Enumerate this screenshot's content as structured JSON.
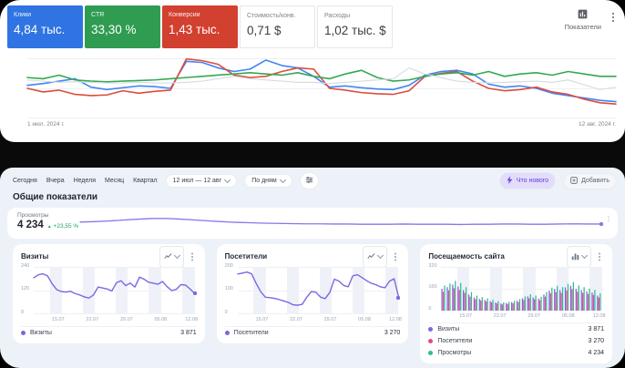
{
  "ads": {
    "scorecards": [
      {
        "label": "Клики",
        "value": "4,84 тыс.",
        "bg": "#2f74e2",
        "fg": "#ffffff",
        "light": false
      },
      {
        "label": "CTR",
        "value": "33,30 %",
        "bg": "#2f9c52",
        "fg": "#ffffff",
        "light": false
      },
      {
        "label": "Конверсии",
        "value": "1,43 тыс.",
        "bg": "#d2402f",
        "fg": "#ffffff",
        "light": false
      },
      {
        "label": "Стоимость/конв.",
        "value": "0,71 $",
        "bg": "#ffffff",
        "fg": "#3c4043",
        "light": true
      },
      {
        "label": "Расходы",
        "value": "1,02 тыс. $",
        "bg": "#ffffff",
        "fg": "#3c4043",
        "light": true
      }
    ],
    "metrics_label": "Показатели"
  },
  "metrica": {
    "toolbar": {
      "periods": [
        "Сегодня",
        "Вчера",
        "Неделя",
        "Месяц",
        "Квартал"
      ],
      "date_range": "12 июл — 12 авг",
      "grouping": "По дням",
      "whats_new": "Что нового",
      "add": "Добавить"
    },
    "section_title": "Общие показатели",
    "overview": {
      "label": "Просмотры",
      "value": "4 234",
      "delta_arrow": "▲",
      "delta": "+23,55 %"
    }
  },
  "chart_data": [
    {
      "id": "ads-performance",
      "type": "line",
      "ymax": 100,
      "grid": true,
      "x_start_label": "1 июл. 2024 г.",
      "x_end_label": "12 авг. 2024 г.",
      "series": [
        {
          "name": "Клики",
          "color": "#4285f4",
          "width": 1.6,
          "values": [
            55,
            58,
            62,
            66,
            52,
            48,
            51,
            54,
            53,
            50,
            95,
            93,
            84,
            78,
            82,
            97,
            88,
            84,
            70,
            52,
            54,
            51,
            49,
            48,
            55,
            72,
            78,
            80,
            74,
            57,
            52,
            54,
            50,
            42,
            38,
            34,
            30,
            28
          ]
        },
        {
          "name": "Конверсии",
          "color": "#dd4b3e",
          "width": 1.6,
          "values": [
            50,
            44,
            47,
            40,
            38,
            39,
            46,
            42,
            45,
            47,
            99,
            96,
            90,
            72,
            68,
            70,
            78,
            84,
            82,
            50,
            47,
            43,
            41,
            40,
            46,
            70,
            75,
            78,
            62,
            50,
            46,
            48,
            52,
            44,
            40,
            32,
            26,
            24
          ]
        },
        {
          "name": "CTR",
          "color": "#34a853",
          "width": 1.6,
          "values": [
            68,
            66,
            72,
            64,
            62,
            61,
            62,
            63,
            64,
            66,
            68,
            70,
            72,
            74,
            76,
            74,
            72,
            76,
            70,
            66,
            74,
            80,
            68,
            62,
            64,
            70,
            74,
            76,
            72,
            78,
            70,
            74,
            76,
            72,
            78,
            74,
            70,
            70
          ]
        },
        {
          "name": "Стоимость/конв.",
          "color": "#d9dce0",
          "width": 1.2,
          "values": [
            64,
            62,
            60,
            61,
            60,
            59,
            59,
            60,
            59,
            59,
            60,
            62,
            66,
            70,
            66,
            64,
            62,
            60,
            60,
            58,
            60,
            62,
            64,
            66,
            84,
            74,
            68,
            62,
            60,
            59,
            60,
            61,
            62,
            60,
            64,
            56,
            48,
            52
          ]
        }
      ]
    },
    {
      "id": "views-sparkline",
      "type": "line",
      "title": "Просмотры",
      "ymax": 100,
      "grid": false,
      "series": [
        {
          "name": "Просмотры",
          "color": "#8a76e8",
          "width": 1.3,
          "end_dot": true,
          "values": [
            55,
            57,
            60,
            64,
            68,
            71,
            72,
            69,
            65,
            61,
            57,
            54,
            52,
            50,
            49,
            48,
            47,
            47,
            46,
            46,
            45,
            45,
            45,
            46,
            45,
            45,
            45,
            44,
            45,
            45,
            46,
            46,
            45,
            45,
            46,
            47,
            46,
            46
          ]
        }
      ]
    },
    {
      "id": "visits",
      "type": "line",
      "title": "Визиты",
      "ymax": 240,
      "grid": true,
      "y_ticks": [
        "240",
        "120",
        "0"
      ],
      "x_ticks": [
        "15.07",
        "22.07",
        "29.07",
        "05.08",
        "12.08"
      ],
      "bands": [
        [
          10,
          17.5
        ],
        [
          30.5,
          38
        ],
        [
          51,
          58.5
        ],
        [
          71.5,
          79
        ],
        [
          92,
          100
        ]
      ],
      "series": [
        {
          "name": "Визиты",
          "color": "#7d66e3",
          "width": 1.4,
          "end_dot": true,
          "total": "3 871",
          "values": [
            185,
            200,
            205,
            195,
            155,
            125,
            115,
            112,
            116,
            105,
            98,
            88,
            82,
            98,
            138,
            133,
            128,
            118,
            160,
            170,
            145,
            158,
            138,
            188,
            178,
            162,
            158,
            152,
            166,
            140,
            120,
            126,
            150,
            148,
            128,
            105
          ]
        }
      ]
    },
    {
      "id": "visitors",
      "type": "line",
      "title": "Посетители",
      "ymax": 200,
      "grid": true,
      "y_ticks": [
        "200",
        "100",
        "0"
      ],
      "x_ticks": [
        "15.07",
        "22.07",
        "29.07",
        "05.08",
        "12.08"
      ],
      "bands": [
        [
          10,
          17.5
        ],
        [
          30.5,
          38
        ],
        [
          51,
          58.5
        ],
        [
          71.5,
          79
        ],
        [
          92,
          100
        ]
      ],
      "series": [
        {
          "name": "Посетители",
          "color": "#7d66e3",
          "width": 1.4,
          "end_dot": true,
          "total": "3 270",
          "values": [
            170,
            174,
            178,
            171,
            130,
            95,
            72,
            70,
            67,
            62,
            56,
            50,
            40,
            38,
            42,
            72,
            96,
            93,
            72,
            66,
            92,
            148,
            140,
            122,
            116,
            162,
            167,
            155,
            142,
            131,
            125,
            116,
            112,
            140,
            150,
            70
          ]
        }
      ]
    },
    {
      "id": "traffic",
      "type": "bar",
      "title": "Посещаемость сайта",
      "ymax": 320,
      "grid": true,
      "y_ticks": [
        "320",
        "160",
        "0"
      ],
      "x_ticks": [
        "15.07",
        "22.07",
        "29.07",
        "05.08",
        "12.08"
      ],
      "bands": [
        [
          10,
          17.5
        ],
        [
          30.5,
          38
        ],
        [
          51,
          58.5
        ],
        [
          71.5,
          79
        ],
        [
          92,
          100
        ]
      ],
      "series": [
        {
          "name": "Визиты",
          "color": "#7d66e3",
          "total": "3 871",
          "values": [
            160,
            172,
            190,
            176,
            150,
            118,
            96,
            86,
            78,
            70,
            60,
            52,
            56,
            62,
            72,
            90,
            104,
            96,
            88,
            118,
            146,
            158,
            150,
            170,
            182,
            160,
            150,
            140,
            132,
            110
          ]
        },
        {
          "name": "Посетители",
          "color": "#e8478b",
          "total": "3 270",
          "values": [
            138,
            148,
            164,
            152,
            130,
            102,
            83,
            74,
            67,
            60,
            52,
            45,
            48,
            54,
            62,
            78,
            90,
            83,
            76,
            102,
            126,
            136,
            130,
            147,
            157,
            138,
            130,
            121,
            114,
            95
          ]
        },
        {
          "name": "Просмотры",
          "color": "#2ebd8f",
          "total": "4 234",
          "values": [
            184,
            198,
            218,
            202,
            172,
            136,
            110,
            99,
            90,
            80,
            69,
            60,
            64,
            71,
            83,
            104,
            120,
            110,
            101,
            136,
            168,
            182,
            172,
            196,
            209,
            184,
            172,
            161,
            152,
            126
          ]
        }
      ]
    }
  ]
}
